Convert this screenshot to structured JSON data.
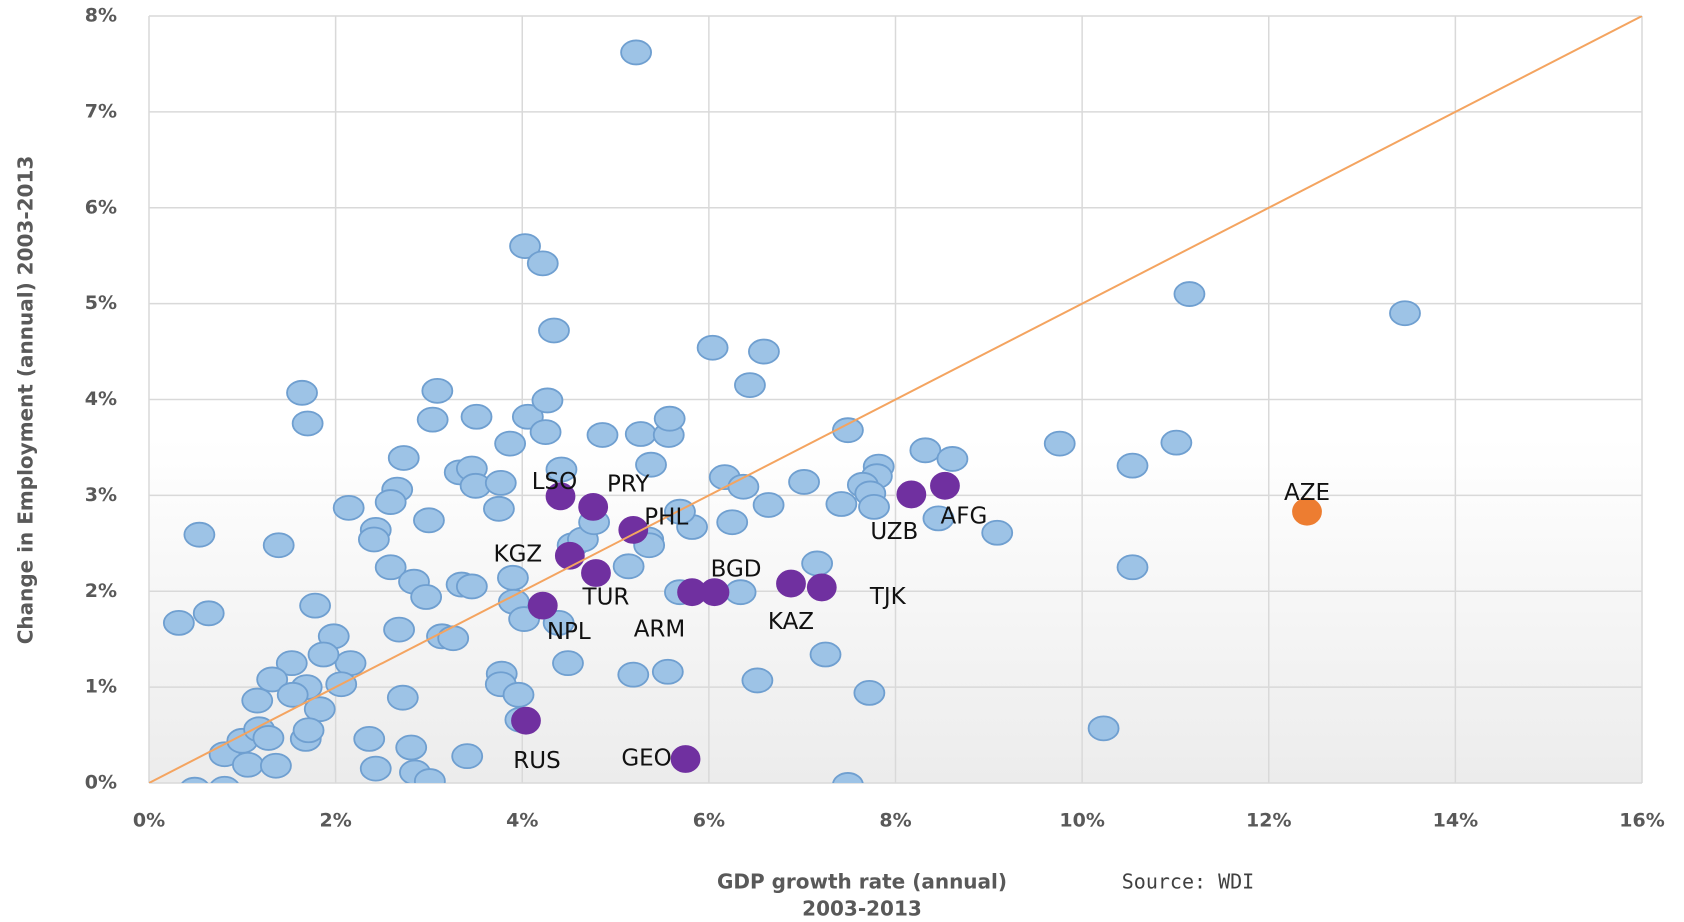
{
  "chart_data": {
    "type": "scatter",
    "xlabel": [
      "GDP growth rate (annual)",
      "2003-2013"
    ],
    "ylabel": "Change in Employment (annual) 2003-2013",
    "source": "Source: WDI",
    "xlim": [
      0,
      16
    ],
    "ylim": [
      0,
      8
    ],
    "xticks": [
      {
        "value": 0,
        "label": "0%"
      },
      {
        "value": 2,
        "label": "2%"
      },
      {
        "value": 4,
        "label": "4%"
      },
      {
        "value": 6,
        "label": "6%"
      },
      {
        "value": 8,
        "label": "8%"
      },
      {
        "value": 10,
        "label": "10%"
      },
      {
        "value": 12,
        "label": "12%"
      },
      {
        "value": 14,
        "label": "14%"
      },
      {
        "value": 16,
        "label": "16%"
      }
    ],
    "yticks": [
      {
        "value": 0,
        "label": "0%"
      },
      {
        "value": 1,
        "label": "1%"
      },
      {
        "value": 2,
        "label": "2%"
      },
      {
        "value": 3,
        "label": "3%"
      },
      {
        "value": 4,
        "label": "4%"
      },
      {
        "value": 5,
        "label": "5%"
      },
      {
        "value": 6,
        "label": "6%"
      },
      {
        "value": 7,
        "label": "7%"
      },
      {
        "value": 8,
        "label": "8%"
      }
    ],
    "grid": true,
    "reference_line": {
      "x": [
        0,
        16
      ],
      "y": [
        0,
        8
      ],
      "color": "#f4a460"
    },
    "series": [
      {
        "color": "#9dc3e6",
        "x": [
          5.22,
          4.03,
          4.22,
          4.34,
          11.15,
          13.46,
          6.04,
          6.59,
          6.44,
          1.64,
          1.7,
          3.09,
          3.04,
          3.51,
          4.06,
          4.27,
          4.25,
          3.87,
          4.86,
          5.27,
          5.57,
          5.58,
          7.49,
          9.76,
          11.01,
          10.54,
          8.32,
          8.61,
          7.82,
          7.8,
          7.65,
          7.73,
          7.77,
          7.42,
          7.02,
          6.64,
          6.17,
          6.37,
          6.25,
          5.82,
          5.69,
          5.38,
          2.73,
          2.66,
          2.59,
          3.33,
          3.46,
          3.5,
          3.77,
          3.75,
          4.42,
          2.14,
          2.43,
          2.41,
          3.0,
          0.54,
          1.39,
          9.09,
          8.46,
          10.54,
          7.16,
          2.59,
          2.84,
          2.97,
          3.35,
          3.46,
          3.9,
          4.54,
          4.65,
          4.77,
          5.14,
          5.35,
          5.36,
          5.69,
          6.34,
          1.78,
          0.64,
          0.32,
          3.91,
          4.02,
          4.39,
          2.68,
          3.14,
          3.26,
          4.49,
          1.98,
          2.16,
          1.87,
          1.53,
          1.32,
          1.69,
          2.06,
          1.54,
          1.83,
          1.16,
          2.72,
          3.78,
          3.77,
          3.96,
          5.19,
          5.56,
          6.52,
          7.25,
          7.72,
          10.23,
          3.98,
          0.81,
          1.0,
          1.18,
          1.28,
          1.06,
          1.36,
          1.68,
          1.71,
          2.36,
          2.43,
          2.81,
          2.85,
          3.01,
          3.41,
          0.49,
          0.81,
          7.49
        ],
        "y": [
          7.62,
          5.6,
          5.42,
          4.72,
          5.1,
          4.9,
          4.54,
          4.5,
          4.15,
          4.07,
          3.75,
          4.09,
          3.79,
          3.82,
          3.82,
          3.99,
          3.66,
          3.54,
          3.63,
          3.64,
          3.63,
          3.8,
          3.68,
          3.54,
          3.55,
          3.31,
          3.47,
          3.38,
          3.3,
          3.2,
          3.11,
          3.02,
          2.88,
          2.91,
          3.14,
          2.9,
          3.19,
          3.09,
          2.72,
          2.67,
          2.83,
          3.32,
          3.39,
          3.06,
          2.93,
          3.24,
          3.28,
          3.1,
          3.13,
          2.86,
          3.27,
          2.87,
          2.64,
          2.54,
          2.74,
          2.59,
          2.48,
          2.61,
          2.76,
          2.25,
          2.29,
          2.25,
          2.1,
          1.94,
          2.07,
          2.05,
          2.14,
          2.48,
          2.54,
          2.72,
          2.26,
          2.54,
          2.48,
          1.99,
          1.99,
          1.85,
          1.77,
          1.67,
          1.89,
          1.71,
          1.67,
          1.6,
          1.53,
          1.51,
          1.25,
          1.53,
          1.25,
          1.34,
          1.25,
          1.08,
          1.0,
          1.03,
          0.92,
          0.77,
          0.86,
          0.89,
          1.14,
          1.03,
          0.92,
          1.13,
          1.16,
          1.07,
          1.34,
          0.94,
          0.57,
          0.66,
          0.3,
          0.44,
          0.56,
          0.47,
          0.19,
          0.18,
          0.46,
          0.55,
          0.46,
          0.15,
          0.37,
          0.11,
          0.02,
          0.28,
          -0.07,
          -0.06,
          -0.02
        ]
      },
      {
        "color": "#7030a0",
        "labels": [
          "LSO",
          "PRY",
          "PHL",
          "KGZ",
          "TUR",
          "NPL",
          "BGD",
          "ARM",
          "KAZ",
          "TJK",
          "UZB",
          "AFG",
          "RUS",
          "GEO"
        ],
        "x": [
          4.41,
          4.76,
          5.19,
          4.51,
          4.79,
          4.22,
          5.82,
          6.06,
          6.88,
          7.21,
          8.17,
          8.53,
          4.04,
          5.75
        ],
        "y": [
          2.99,
          2.88,
          2.64,
          2.37,
          2.19,
          1.85,
          1.99,
          1.99,
          2.08,
          2.04,
          3.01,
          3.1,
          0.65,
          0.25
        ]
      },
      {
        "color": "#ed7d31",
        "labels": [
          "AZE"
        ],
        "x": [
          12.41
        ],
        "y": [
          2.83
        ]
      }
    ]
  }
}
